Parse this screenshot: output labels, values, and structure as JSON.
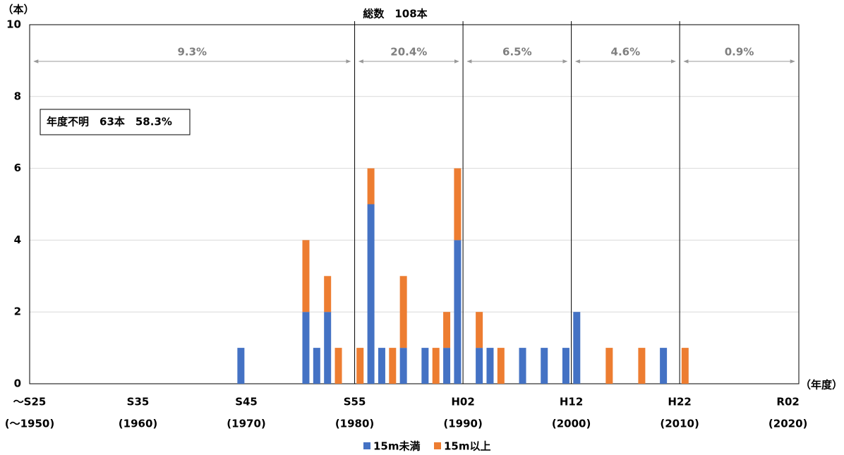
{
  "chart_data": {
    "type": "stacked_bar",
    "title": "総数　108本",
    "y_unit": "（本）",
    "x_unit": "（年度）",
    "note": "年度不明　63本　58.3%",
    "categories": [
      "～S25",
      null,
      null,
      null,
      null,
      null,
      null,
      null,
      null,
      null,
      "S35",
      null,
      null,
      null,
      null,
      null,
      null,
      null,
      null,
      null,
      "S45",
      null,
      null,
      null,
      null,
      null,
      null,
      null,
      null,
      null,
      "S55",
      null,
      null,
      null,
      null,
      null,
      null,
      null,
      null,
      null,
      "H02",
      null,
      null,
      null,
      null,
      null,
      null,
      null,
      null,
      null,
      "H12",
      null,
      null,
      null,
      null,
      null,
      null,
      null,
      null,
      null,
      "H22",
      null,
      null,
      null,
      null,
      null,
      null,
      null,
      null,
      null,
      "R02"
    ],
    "category_sublabels": [
      "(～1950)",
      null,
      null,
      null,
      null,
      null,
      null,
      null,
      null,
      null,
      "(1960)",
      null,
      null,
      null,
      null,
      null,
      null,
      null,
      null,
      null,
      "(1970)",
      null,
      null,
      null,
      null,
      null,
      null,
      null,
      null,
      null,
      "(1980)",
      null,
      null,
      null,
      null,
      null,
      null,
      null,
      null,
      null,
      "(1990)",
      null,
      null,
      null,
      null,
      null,
      null,
      null,
      null,
      null,
      "(2000)",
      null,
      null,
      null,
      null,
      null,
      null,
      null,
      null,
      null,
      "(2010)",
      null,
      null,
      null,
      null,
      null,
      null,
      null,
      null,
      null,
      "(2020)"
    ],
    "series": [
      {
        "name": "15m未満",
        "color": "#4472c4",
        "values": [
          0,
          0,
          0,
          0,
          0,
          0,
          0,
          0,
          0,
          0,
          0,
          0,
          0,
          0,
          0,
          0,
          0,
          0,
          0,
          1,
          0,
          0,
          0,
          0,
          0,
          2,
          1,
          2,
          0,
          0,
          0,
          5,
          1,
          0,
          1,
          0,
          1,
          0,
          1,
          4,
          0,
          1,
          1,
          0,
          0,
          1,
          0,
          1,
          0,
          1,
          2,
          0,
          0,
          0,
          0,
          0,
          0,
          0,
          1,
          0,
          0,
          0,
          0,
          0,
          0,
          0,
          0,
          0,
          0,
          0,
          0
        ]
      },
      {
        "name": "15m以上",
        "color": "#ed7d31",
        "values": [
          0,
          0,
          0,
          0,
          0,
          0,
          0,
          0,
          0,
          0,
          0,
          0,
          0,
          0,
          0,
          0,
          0,
          0,
          0,
          0,
          0,
          0,
          0,
          0,
          0,
          2,
          0,
          1,
          1,
          0,
          1,
          1,
          0,
          1,
          2,
          0,
          0,
          1,
          1,
          2,
          0,
          1,
          0,
          1,
          0,
          0,
          0,
          0,
          0,
          0,
          0,
          0,
          0,
          1,
          0,
          0,
          1,
          0,
          0,
          0,
          1,
          0,
          0,
          0,
          0,
          0,
          0,
          0,
          0,
          0,
          0
        ]
      }
    ],
    "periods": [
      {
        "label": "9.3%",
        "start": 0,
        "end": 30
      },
      {
        "label": "20.4%",
        "start": 30,
        "end": 40
      },
      {
        "label": "6.5%",
        "start": 40,
        "end": 50
      },
      {
        "label": "4.6%",
        "start": 50,
        "end": 60
      },
      {
        "label": "0.9%",
        "start": 60,
        "end": 71
      }
    ],
    "ylim": [
      0,
      10
    ],
    "yticks": [
      0,
      2,
      4,
      6,
      8,
      10
    ],
    "grid": true
  }
}
